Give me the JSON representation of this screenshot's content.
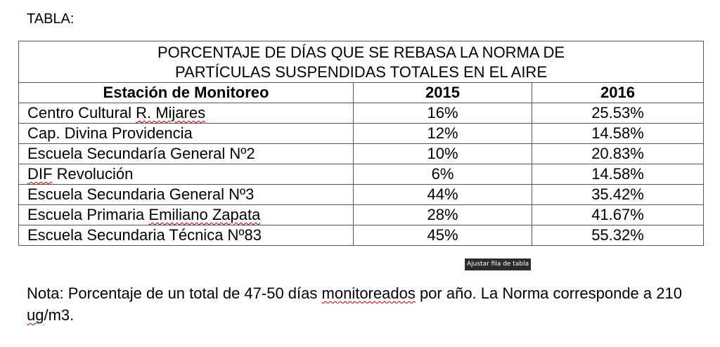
{
  "heading": "TABLA:",
  "table": {
    "caption_line1": "PORCENTAJE DE DÍAS QUE SE REBASA LA NORMA DE",
    "caption_line2": "PARTÍCULAS SUSPENDIDAS TOTALES EN EL AIRE",
    "headers": [
      "Estación de Monitoreo",
      "2015",
      "2016"
    ],
    "rows": [
      {
        "name_pre": "Centro Cultural ",
        "name_mark": "R. Mijares",
        "name_post": "",
        "v2015": "16%",
        "v2016": "25.53%"
      },
      {
        "name_pre": "Cap. Divina Providencia",
        "name_mark": "",
        "name_post": "",
        "v2015": "12%",
        "v2016": "14.58%"
      },
      {
        "name_pre": "Escuela Secundaría General Nº2",
        "name_mark": "",
        "name_post": "",
        "v2015": "10%",
        "v2016": "20.83%"
      },
      {
        "name_pre": "",
        "name_mark": "DIF",
        "name_post": " Revolución",
        "v2015": "6%",
        "v2016": "14.58%"
      },
      {
        "name_pre": "Escuela Secundaria General Nº3",
        "name_mark": "",
        "name_post": "",
        "v2015": "44%",
        "v2016": "35.42%"
      },
      {
        "name_pre": "Escuela Primaria ",
        "name_mark": "Emiliano Zapata",
        "name_post": "",
        "v2015": "28%",
        "v2016": "41.67%"
      },
      {
        "name_pre": "Escuela Secundaria Técnica Nº83",
        "name_mark": "",
        "name_post": "",
        "v2015": "45%",
        "v2016": "55.32%"
      }
    ]
  },
  "tooltip": "Ajustar fila de tabla",
  "note": {
    "part1": "Nota: Porcentaje de un total de 47-50 días ",
    "mark1": "monitoreados",
    "part2": " por año. La Norma corresponde a 210 ",
    "mark2": "ug",
    "part3": "/m3."
  }
}
